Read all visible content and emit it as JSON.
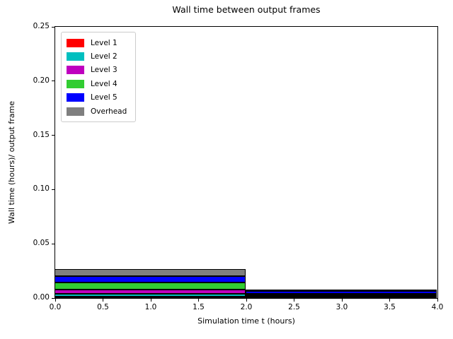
{
  "chart_data": {
    "type": "bar",
    "stacked": true,
    "title": "Wall time between output frames",
    "xlabel": "Simulation time t (hours)",
    "ylabel": "Wall time (hours)/ output frame",
    "xlim": [
      0.0,
      4.0
    ],
    "ylim": [
      0.0,
      0.25
    ],
    "grid": false,
    "legend_position": "upper left",
    "bar_edge_color": "#000000",
    "background_color": "#ffffff",
    "xticks": [
      0.0,
      0.5,
      1.0,
      1.5,
      2.0,
      2.5,
      3.0,
      3.5,
      4.0
    ],
    "xtick_labels": [
      "0.0",
      "0.5",
      "1.0",
      "1.5",
      "2.0",
      "2.5",
      "3.0",
      "3.5",
      "4.0"
    ],
    "yticks": [
      0.0,
      0.05,
      0.1,
      0.15,
      0.2,
      0.25
    ],
    "ytick_labels": [
      "0.00",
      "0.05",
      "0.10",
      "0.15",
      "0.20",
      "0.25"
    ],
    "bars": [
      {
        "x_start": 0.0,
        "x_end": 2.0
      },
      {
        "x_start": 2.0,
        "x_end": 4.0
      }
    ],
    "series": [
      {
        "name": "Level 1",
        "color": "#ff0000",
        "values": [
          0.0016,
          0.0008
        ]
      },
      {
        "name": "Level 2",
        "color": "#00bfbf",
        "values": [
          0.0026,
          0.0008
        ]
      },
      {
        "name": "Level 3",
        "color": "#bf00bf",
        "values": [
          0.0036,
          0.001
        ]
      },
      {
        "name": "Level 4",
        "color": "#32cd32",
        "values": [
          0.0065,
          0.0012
        ]
      },
      {
        "name": "Level 5",
        "color": "#0000ff",
        "values": [
          0.0059,
          0.0026
        ]
      },
      {
        "name": "Overhead",
        "color": "#7f7f7f",
        "values": [
          0.0062,
          0.0008
        ]
      }
    ]
  }
}
